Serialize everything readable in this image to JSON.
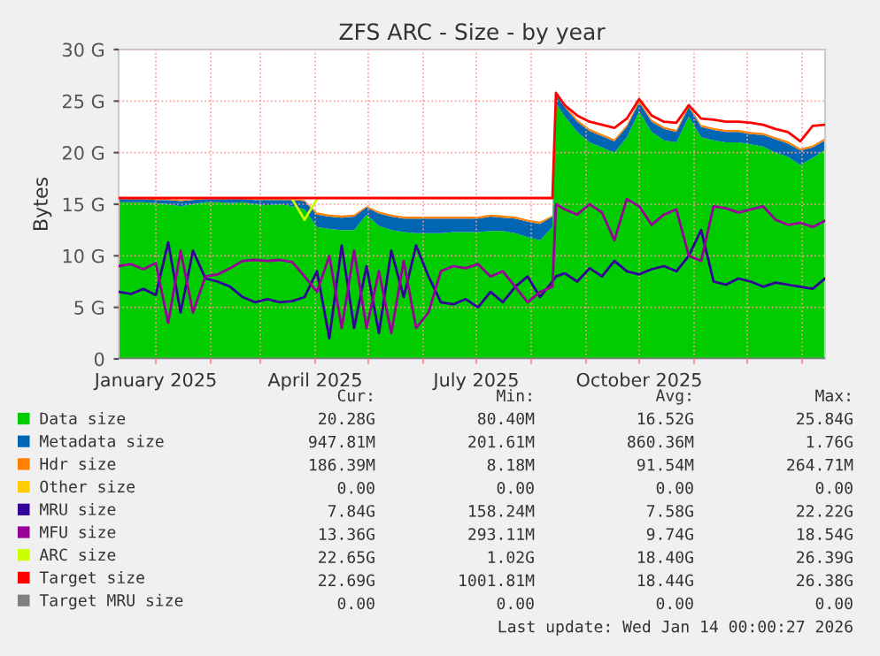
{
  "chart_data": {
    "type": "area",
    "title": "ZFS ARC - Size - by year",
    "ylabel": "Bytes",
    "stacked": true,
    "grid": true,
    "legend": "bottom",
    "x": [
      "2024-12-11",
      "2024-12-18",
      "2024-12-25",
      "2025-01-01",
      "2025-01-08",
      "2025-01-15",
      "2025-01-22",
      "2025-01-29",
      "2025-02-05",
      "2025-02-12",
      "2025-02-19",
      "2025-02-26",
      "2025-03-05",
      "2025-03-12",
      "2025-03-19",
      "2025-03-26",
      "2025-04-02",
      "2025-04-09",
      "2025-04-16",
      "2025-04-23",
      "2025-04-30",
      "2025-05-07",
      "2025-05-14",
      "2025-05-21",
      "2025-05-28",
      "2025-06-04",
      "2025-06-11",
      "2025-06-18",
      "2025-06-25",
      "2025-07-02",
      "2025-07-09",
      "2025-07-16",
      "2025-07-23",
      "2025-07-30",
      "2025-08-06",
      "2025-08-13",
      "2025-08-15",
      "2025-08-20",
      "2025-08-27",
      "2025-09-03",
      "2025-09-10",
      "2025-09-17",
      "2025-09-24",
      "2025-10-01",
      "2025-10-08",
      "2025-10-15",
      "2025-10-22",
      "2025-10-29",
      "2025-11-05",
      "2025-11-12",
      "2025-11-19",
      "2025-11-26",
      "2025-12-03",
      "2025-12-10",
      "2025-12-17",
      "2025-12-24",
      "2025-12-31",
      "2026-01-07",
      "2026-01-14"
    ],
    "xlim": [
      "2024-12-11",
      "2026-01-14"
    ],
    "xticks": [
      {
        "value": "2025-01-01",
        "label": "January 2025"
      },
      {
        "value": "2025-02-01",
        "label": null
      },
      {
        "value": "2025-03-01",
        "label": null
      },
      {
        "value": "2025-04-01",
        "label": "April 2025"
      },
      {
        "value": "2025-05-01",
        "label": null
      },
      {
        "value": "2025-06-01",
        "label": null
      },
      {
        "value": "2025-07-01",
        "label": "July 2025"
      },
      {
        "value": "2025-08-01",
        "label": null
      },
      {
        "value": "2025-09-01",
        "label": null
      },
      {
        "value": "2025-10-01",
        "label": "October 2025"
      },
      {
        "value": "2025-11-01",
        "label": null
      },
      {
        "value": "2025-12-01",
        "label": null
      },
      {
        "value": "2026-01-01",
        "label": null
      }
    ],
    "ylim": [
      0,
      30
    ],
    "yticks": [
      0,
      {
        "value": 5,
        "label": "5 G"
      },
      {
        "value": 10,
        "label": "10 G"
      },
      {
        "value": 15,
        "label": "15 G"
      },
      {
        "value": 20,
        "label": "20 G"
      },
      {
        "value": 25,
        "label": "25 G"
      },
      {
        "value": 30,
        "label": "30 G"
      }
    ],
    "series": [
      {
        "name": "Data size",
        "type": "area",
        "color": "#00cc00",
        "values": [
          15.2,
          15.2,
          15.2,
          15.1,
          15.0,
          14.8,
          15.0,
          15.2,
          15.2,
          15.1,
          15.2,
          15.0,
          14.9,
          15.0,
          14.8,
          14.5,
          12.8,
          12.6,
          12.5,
          12.5,
          14.0,
          12.9,
          12.5,
          12.3,
          12.2,
          12.2,
          12.2,
          12.3,
          12.3,
          12.3,
          12.4,
          12.4,
          12.2,
          11.8,
          11.5,
          12.8,
          24.8,
          23.5,
          22.0,
          21.0,
          20.5,
          20.0,
          21.5,
          24.0,
          22.0,
          21.2,
          21.0,
          23.5,
          21.5,
          21.2,
          21.0,
          21.0,
          20.8,
          20.6,
          20.0,
          19.6,
          18.8,
          19.5,
          20.3
        ]
      },
      {
        "name": "Metadata size",
        "type": "area",
        "color": "#0066b3",
        "values": [
          0.3,
          0.3,
          0.3,
          0.3,
          0.4,
          0.5,
          0.4,
          0.3,
          0.3,
          0.4,
          0.3,
          0.4,
          0.5,
          0.4,
          0.6,
          0.8,
          1.2,
          1.2,
          1.2,
          1.3,
          0.7,
          1.2,
          1.3,
          1.3,
          1.4,
          1.4,
          1.4,
          1.3,
          1.3,
          1.3,
          1.4,
          1.3,
          1.4,
          1.5,
          1.6,
          1.0,
          0.8,
          0.9,
          1.0,
          1.1,
          1.1,
          1.1,
          1.0,
          0.9,
          1.0,
          1.1,
          1.0,
          0.9,
          1.0,
          1.0,
          1.0,
          1.0,
          1.0,
          1.1,
          1.3,
          1.3,
          1.4,
          1.0,
          0.9
        ]
      },
      {
        "name": "Hdr size",
        "type": "area",
        "color": "#ff8000",
        "values": [
          0.1,
          0.1,
          0.1,
          0.1,
          0.1,
          0.1,
          0.1,
          0.1,
          0.1,
          0.1,
          0.1,
          0.1,
          0.1,
          0.1,
          0.1,
          0.1,
          0.2,
          0.2,
          0.2,
          0.2,
          0.1,
          0.2,
          0.2,
          0.2,
          0.2,
          0.2,
          0.2,
          0.2,
          0.2,
          0.2,
          0.2,
          0.2,
          0.2,
          0.2,
          0.2,
          0.1,
          0.2,
          0.2,
          0.2,
          0.2,
          0.2,
          0.2,
          0.2,
          0.2,
          0.2,
          0.2,
          0.2,
          0.2,
          0.2,
          0.2,
          0.2,
          0.2,
          0.2,
          0.2,
          0.2,
          0.2,
          0.2,
          0.2,
          0.2
        ]
      },
      {
        "name": "Other size",
        "type": "area",
        "color": "#ffcc00",
        "values": [
          null,
          null,
          null,
          null,
          null,
          null,
          null,
          null,
          null,
          null,
          null,
          null,
          null,
          null,
          null,
          null,
          null,
          null,
          null,
          null,
          null,
          null,
          null,
          null,
          null,
          null,
          null,
          null,
          null,
          null,
          null,
          null,
          null,
          null,
          null,
          null,
          null,
          null,
          null,
          null,
          null,
          null,
          null,
          null,
          null,
          null,
          null,
          null,
          null,
          null,
          null,
          null,
          null,
          null,
          null,
          null,
          null,
          null,
          null
        ]
      },
      {
        "name": "MRU size",
        "type": "line",
        "color": "#330099",
        "values": [
          6.5,
          6.3,
          6.8,
          6.2,
          11.3,
          4.5,
          10.5,
          7.8,
          7.5,
          7.0,
          6.0,
          5.5,
          5.8,
          5.5,
          5.6,
          6.0,
          8.5,
          2.0,
          11.0,
          3.0,
          9.0,
          2.5,
          10.5,
          6.0,
          11.0,
          8.0,
          5.5,
          5.3,
          5.8,
          5.0,
          6.5,
          5.5,
          7.0,
          8.0,
          6.0,
          7.5,
          8.0,
          8.3,
          7.5,
          8.8,
          8.0,
          9.5,
          8.5,
          8.2,
          8.7,
          9.0,
          8.5,
          10.0,
          12.5,
          7.5,
          7.2,
          7.8,
          7.5,
          7.0,
          7.4,
          7.2,
          7.0,
          6.8,
          7.8
        ]
      },
      {
        "name": "MFU size",
        "type": "line",
        "color": "#990099",
        "values": [
          9.0,
          9.2,
          8.7,
          9.3,
          3.5,
          10.5,
          4.5,
          8.0,
          8.2,
          8.8,
          9.5,
          9.6,
          9.5,
          9.6,
          9.4,
          8.0,
          6.5,
          10.0,
          3.0,
          10.5,
          3.0,
          8.5,
          2.5,
          9.5,
          3.0,
          4.5,
          8.5,
          9.0,
          8.8,
          9.2,
          8.0,
          8.5,
          7.0,
          5.5,
          6.5,
          7.0,
          15.0,
          14.5,
          14.0,
          15.0,
          14.2,
          11.5,
          15.5,
          14.8,
          13.0,
          14.0,
          14.5,
          10.0,
          9.5,
          14.8,
          14.6,
          14.2,
          14.5,
          14.8,
          13.5,
          13.0,
          13.2,
          12.8,
          13.4
        ]
      },
      {
        "name": "ARC size",
        "type": "line",
        "color": "#ccff00",
        "values": [
          null,
          null,
          null,
          null,
          null,
          null,
          null,
          null,
          null,
          null,
          null,
          null,
          null,
          null,
          15.5,
          13.5,
          15.5,
          null,
          null,
          null,
          null,
          null,
          null,
          null,
          null,
          null,
          null,
          null,
          null,
          null,
          null,
          null,
          null,
          null,
          null,
          null,
          null,
          null,
          null,
          null,
          null,
          null,
          null,
          null,
          null,
          null,
          null,
          null,
          null,
          null,
          null,
          null,
          null,
          null,
          null,
          null,
          null,
          null,
          null
        ]
      },
      {
        "name": "Target size",
        "type": "line",
        "color": "#ff0000",
        "values": [
          15.6,
          15.6,
          15.6,
          15.6,
          15.6,
          15.6,
          15.6,
          15.6,
          15.6,
          15.6,
          15.6,
          15.6,
          15.6,
          15.6,
          15.6,
          15.6,
          15.6,
          15.6,
          15.6,
          15.6,
          15.6,
          15.6,
          15.6,
          15.6,
          15.6,
          15.6,
          15.6,
          15.6,
          15.6,
          15.6,
          15.6,
          15.6,
          15.6,
          15.6,
          15.6,
          15.6,
          25.8,
          24.6,
          23.6,
          23.0,
          22.7,
          22.4,
          23.3,
          25.2,
          23.6,
          23.0,
          22.9,
          24.6,
          23.3,
          23.2,
          23.0,
          23.0,
          22.9,
          22.7,
          22.3,
          22.0,
          21.1,
          22.6,
          22.7
        ]
      },
      {
        "name": "Target MRU size",
        "type": "line",
        "color": "#808080",
        "values": [
          0,
          0,
          0,
          0,
          0,
          0,
          0,
          0,
          0,
          0,
          0,
          0,
          0,
          0,
          0,
          0,
          0,
          0,
          0,
          0,
          0,
          0,
          0,
          0,
          0,
          0,
          0,
          0,
          0,
          0,
          0,
          0,
          0,
          0,
          0,
          0,
          0,
          0,
          0,
          0,
          0,
          0,
          0,
          0,
          0,
          0,
          0,
          0,
          0,
          0,
          0,
          0,
          0,
          0,
          0,
          0,
          0,
          0,
          0
        ]
      }
    ],
    "annotations": [
      "Cur:",
      "Min:",
      "Avg:",
      "Max:",
      "20.28G",
      "80.40M",
      "16.52G",
      "25.84G",
      "947.81M",
      "201.61M",
      "860.36M",
      "1.76G",
      "186.39M",
      "8.18M",
      "91.54M",
      "264.71M",
      "0.00",
      "0.00",
      "0.00",
      "0.00",
      "7.84G",
      "158.24M",
      "7.58G",
      "22.22G",
      "13.36G",
      "293.11M",
      "9.74G",
      "18.54G",
      "22.65G",
      "1.02G",
      "18.40G",
      "26.39G",
      "22.69G",
      "1001.81M",
      "18.44G",
      "26.38G",
      "0.00",
      "0.00",
      "0.00",
      "0.00",
      "Last update: Wed Jan 14 00:00:27 2026"
    ]
  }
}
